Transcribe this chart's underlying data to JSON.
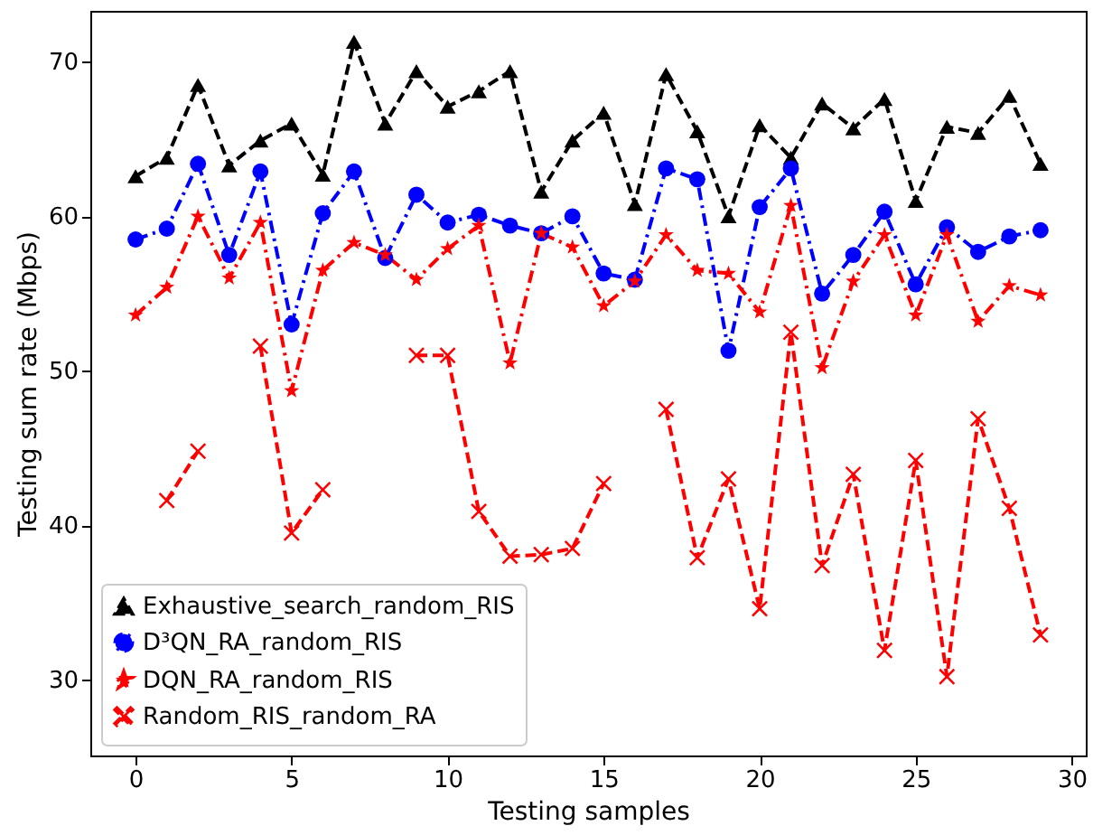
{
  "chart_data": {
    "type": "line",
    "xlabel": "Testing samples",
    "ylabel": "Testing sum rate (Mbps)",
    "x": [
      0,
      1,
      2,
      3,
      4,
      5,
      6,
      7,
      8,
      9,
      10,
      11,
      12,
      13,
      14,
      15,
      16,
      17,
      18,
      19,
      20,
      21,
      22,
      23,
      24,
      25,
      26,
      27,
      28,
      29
    ],
    "xlim": [
      -1.45,
      30.45
    ],
    "xticks": [
      0,
      5,
      10,
      15,
      20,
      25,
      30
    ],
    "ylim": [
      25.1,
      73.3
    ],
    "yticks": [
      30,
      40,
      50,
      60,
      70
    ],
    "grid": false,
    "legend": "bottom left",
    "series": [
      {
        "name": "Exhaustive_search_random_RIS",
        "color": "#000000",
        "marker": "triangle",
        "line_style": "dashed",
        "values": [
          62.6,
          63.8,
          68.5,
          63.3,
          64.9,
          66.0,
          62.7,
          71.3,
          66.0,
          69.4,
          67.1,
          68.1,
          69.4,
          61.6,
          64.9,
          66.7,
          60.8,
          69.2,
          65.5,
          60.0,
          65.9,
          63.8,
          67.3,
          65.7,
          67.6,
          61.0,
          65.8,
          65.4,
          67.8,
          63.4
        ]
      },
      {
        "name": "D³QN_RA_random_RIS",
        "color": "#0000ff",
        "marker": "circle",
        "line_style": "dashdot",
        "values": [
          58.5,
          59.2,
          63.4,
          57.5,
          62.9,
          53.0,
          60.2,
          62.9,
          57.3,
          61.4,
          59.6,
          60.1,
          59.4,
          58.9,
          60.0,
          56.3,
          55.9,
          63.1,
          62.4,
          51.3,
          60.6,
          63.1,
          55.0,
          57.5,
          60.3,
          55.6,
          59.3,
          57.7,
          58.7,
          59.1
        ]
      },
      {
        "name": "DQN_RA_random_RIS",
        "color": "#ff0000",
        "marker": "star",
        "line_style": "dashdot",
        "values": [
          53.6,
          55.4,
          60.0,
          56.0,
          59.6,
          48.7,
          56.5,
          58.3,
          57.5,
          55.9,
          57.9,
          59.4,
          50.5,
          58.9,
          58.0,
          54.2,
          55.8,
          58.8,
          56.5,
          56.3,
          53.8,
          60.7,
          50.2,
          55.8,
          58.8,
          53.6,
          58.8,
          53.2,
          55.5,
          54.9
        ]
      },
      {
        "name": "Random_RIS_random_RA",
        "color": "#ff0000",
        "marker": "cross",
        "line_style": "dashed",
        "values": [
          null,
          41.6,
          44.8,
          null,
          51.6,
          39.5,
          42.3,
          null,
          null,
          51.0,
          51.0,
          40.9,
          38.0,
          38.1,
          38.5,
          42.7,
          null,
          47.5,
          37.9,
          43.0,
          34.6,
          52.5,
          37.4,
          43.3,
          31.9,
          44.2,
          30.2,
          46.9,
          41.1,
          32.9
        ]
      }
    ]
  }
}
